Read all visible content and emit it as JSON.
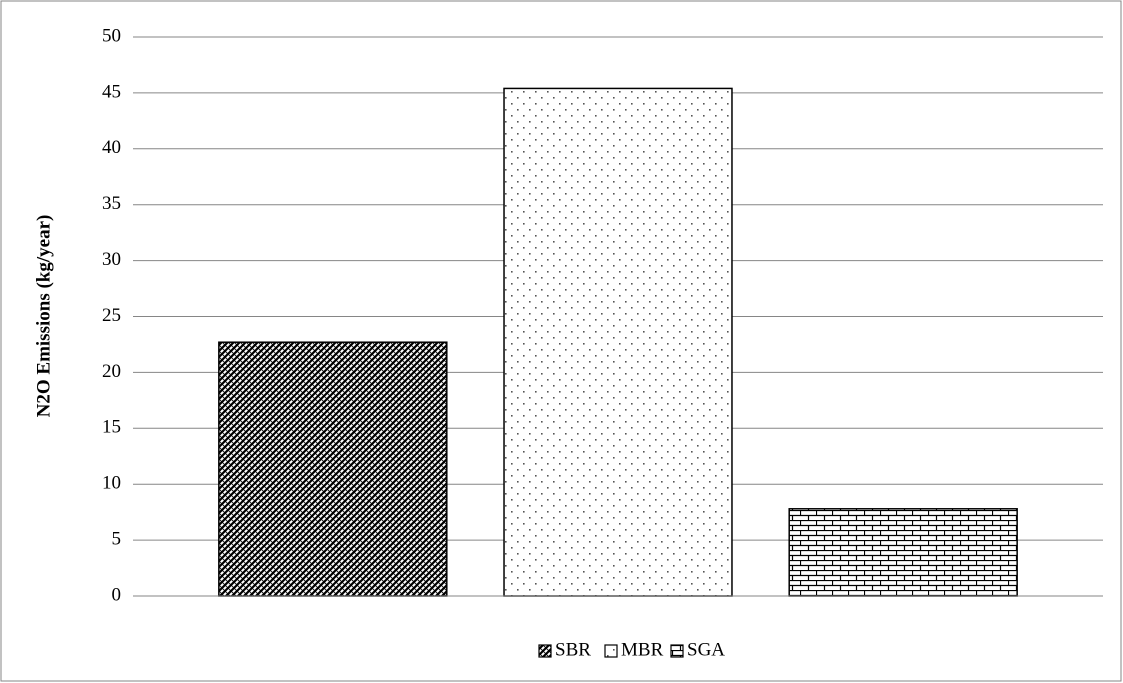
{
  "chart_data": {
    "type": "bar",
    "y_label": "N2O Emissions (kg/year)",
    "categories": [
      null
    ],
    "series": [
      {
        "name": "SBR",
        "color": "#000000",
        "pattern": "hatch",
        "values": [
          22.7
        ]
      },
      {
        "name": "MBR",
        "color": "#000000",
        "pattern": "dots",
        "values": [
          45.4
        ]
      },
      {
        "name": "SGA",
        "color": "#000000",
        "pattern": "brick",
        "values": [
          7.8
        ]
      }
    ],
    "ylim": [
      0,
      50
    ],
    "yticks": [
      0,
      5,
      10,
      15,
      20,
      25,
      30,
      35,
      40,
      45,
      50
    ],
    "grid": true,
    "legend": "bottom"
  }
}
